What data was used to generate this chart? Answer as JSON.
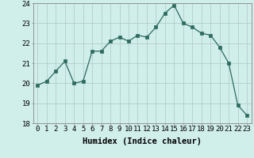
{
  "x": [
    0,
    1,
    2,
    3,
    4,
    5,
    6,
    7,
    8,
    9,
    10,
    11,
    12,
    13,
    14,
    15,
    16,
    17,
    18,
    19,
    20,
    21,
    22,
    23
  ],
  "y": [
    19.9,
    20.1,
    20.6,
    21.1,
    20.0,
    20.1,
    21.6,
    21.6,
    22.1,
    22.3,
    22.1,
    22.4,
    22.3,
    22.8,
    23.5,
    23.9,
    23.0,
    22.8,
    22.5,
    22.4,
    21.8,
    21.0,
    18.9,
    18.4
  ],
  "line_color": "#2d6b5e",
  "marker": "s",
  "marker_size": 2.2,
  "bg_color": "#d0eeea",
  "grid_color": "#b0c8c4",
  "xlabel": "Humidex (Indice chaleur)",
  "xlabel_fontsize": 7.5,
  "tick_fontsize": 6.5,
  "ylim": [
    18,
    24
  ],
  "xlim": [
    -0.5,
    23.5
  ],
  "yticks": [
    18,
    19,
    20,
    21,
    22,
    23,
    24
  ],
  "xticks": [
    0,
    1,
    2,
    3,
    4,
    5,
    6,
    7,
    8,
    9,
    10,
    11,
    12,
    13,
    14,
    15,
    16,
    17,
    18,
    19,
    20,
    21,
    22,
    23
  ]
}
